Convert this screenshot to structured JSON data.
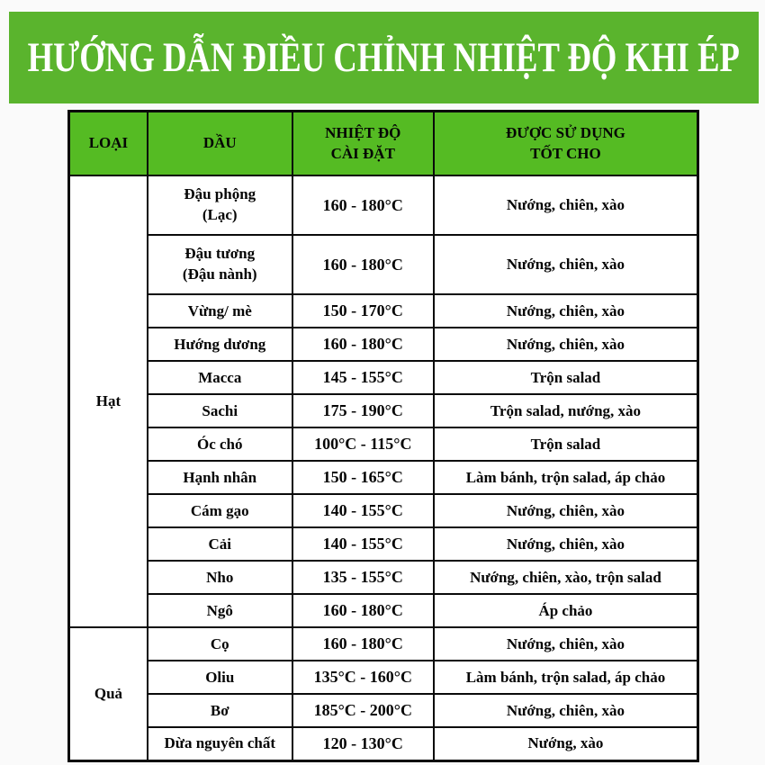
{
  "page": {
    "title": "HƯỚNG DẪN ĐIỀU CHỈNH NHIỆT ĐỘ KHI ÉP"
  },
  "colors": {
    "banner_green": "#5ab42d",
    "header_green": "#55bb23",
    "border_black": "#0a0a0a",
    "text_black": "#050505",
    "title_white": "#ffffff"
  },
  "table": {
    "headers": {
      "type": "LOẠI",
      "oil": "DẦU",
      "temp_line1": "NHIỆT ĐỘ",
      "temp_line2": "CÀI ĐẶT",
      "use_line1": "ĐƯỢC SỬ DỤNG",
      "use_line2": "TỐT CHO"
    },
    "groups": [
      {
        "label": "Hạt"
      },
      {
        "label": "Quả"
      }
    ],
    "rows": [
      {
        "oil": "Đậu phộng",
        "oil_line2": "(Lạc)",
        "temp": "160 - 180°C",
        "use": "Nướng, chiên, xào"
      },
      {
        "oil": "Đậu tương",
        "oil_line2": "(Đậu nành)",
        "temp": "160 - 180°C",
        "use": "Nướng, chiên, xào"
      },
      {
        "oil": "Vừng/ mè",
        "temp": "150 - 170°C",
        "use": "Nướng, chiên, xào"
      },
      {
        "oil": "Hướng dương",
        "temp": "160 - 180°C",
        "use": "Nướng, chiên, xào"
      },
      {
        "oil": "Macca",
        "temp": "145 - 155°C",
        "use": "Trộn salad"
      },
      {
        "oil": "Sachi",
        "temp": "175 - 190°C",
        "use": "Trộn salad, nướng, xào"
      },
      {
        "oil": "Óc chó",
        "temp": "100°C - 115°C",
        "use": "Trộn salad"
      },
      {
        "oil": "Hạnh nhân",
        "temp": "150 - 165°C",
        "use": "Làm bánh, trộn salad, áp chảo"
      },
      {
        "oil": "Cám gạo",
        "temp": "140 - 155°C",
        "use": "Nướng, chiên, xào"
      },
      {
        "oil": "Cải",
        "temp": "140 - 155°C",
        "use": "Nướng, chiên, xào"
      },
      {
        "oil": "Nho",
        "temp": "135 - 155°C",
        "use": "Nướng, chiên, xào, trộn salad"
      },
      {
        "oil": "Ngô",
        "temp": "160 - 180°C",
        "use": "Áp chảo"
      },
      {
        "oil": "Cọ",
        "temp": "160 - 180°C",
        "use": "Nướng, chiên, xào"
      },
      {
        "oil": "Oliu",
        "temp": "135°C - 160°C",
        "use": "Làm bánh, trộn salad, áp chảo"
      },
      {
        "oil": "Bơ",
        "temp": "185°C - 200°C",
        "use": "Nướng, chiên, xào"
      },
      {
        "oil": "Dừa nguyên chất",
        "temp": "120 - 130°C",
        "use": "Nướng, xào"
      }
    ]
  }
}
